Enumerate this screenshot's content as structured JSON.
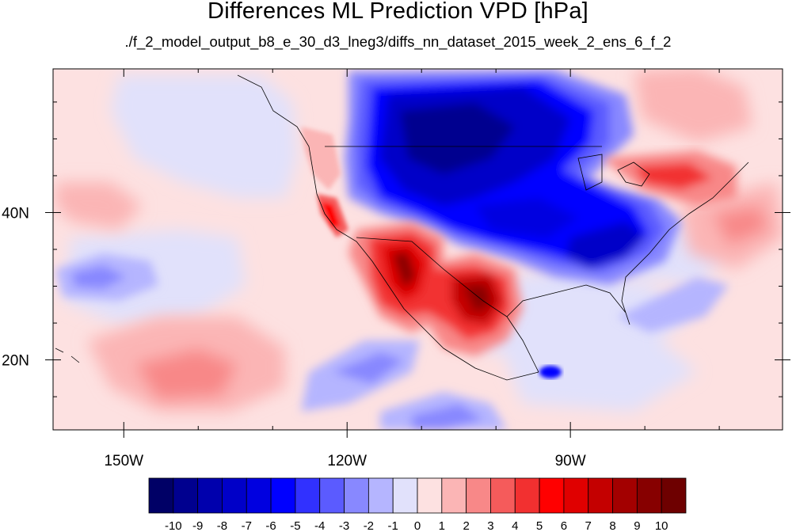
{
  "title": "Differences ML Prediction VPD [hPa]",
  "subtitle": "./f_2_model_output_b8_e_30_d3_lneg3/diffs_nn_dataset_2015_week_2_ens_6_f_2",
  "map": {
    "lon_range": [
      -159.5,
      -61.5
    ],
    "lat_range": [
      10.5,
      59.5
    ],
    "lon_ticks": [
      {
        "value": -150,
        "label": "150W"
      },
      {
        "value": -120,
        "label": "120W"
      },
      {
        "value": -90,
        "label": "90W"
      }
    ],
    "lat_ticks": [
      {
        "value": 40,
        "label": "40N"
      },
      {
        "value": 20,
        "label": "20N"
      }
    ]
  },
  "colorbar": {
    "levels": [
      "-10",
      "-9",
      "-8",
      "-7",
      "-6",
      "-5",
      "-4",
      "-3",
      "-2",
      "-1",
      "0",
      "1",
      "2",
      "3",
      "4",
      "5",
      "6",
      "7",
      "8",
      "9",
      "10"
    ],
    "colors": [
      "#000066",
      "#00008f",
      "#0000ad",
      "#0000c8",
      "#0000e0",
      "#0000ff",
      "#3131ff",
      "#5b5bff",
      "#8888ff",
      "#b5b5ff",
      "#e1e1fb",
      "#fde1e1",
      "#fbb5b5",
      "#f88888",
      "#f55b5b",
      "#f23030",
      "#ff0000",
      "#e00000",
      "#c40000",
      "#a30000",
      "#870000",
      "#6e0000"
    ]
  }
}
